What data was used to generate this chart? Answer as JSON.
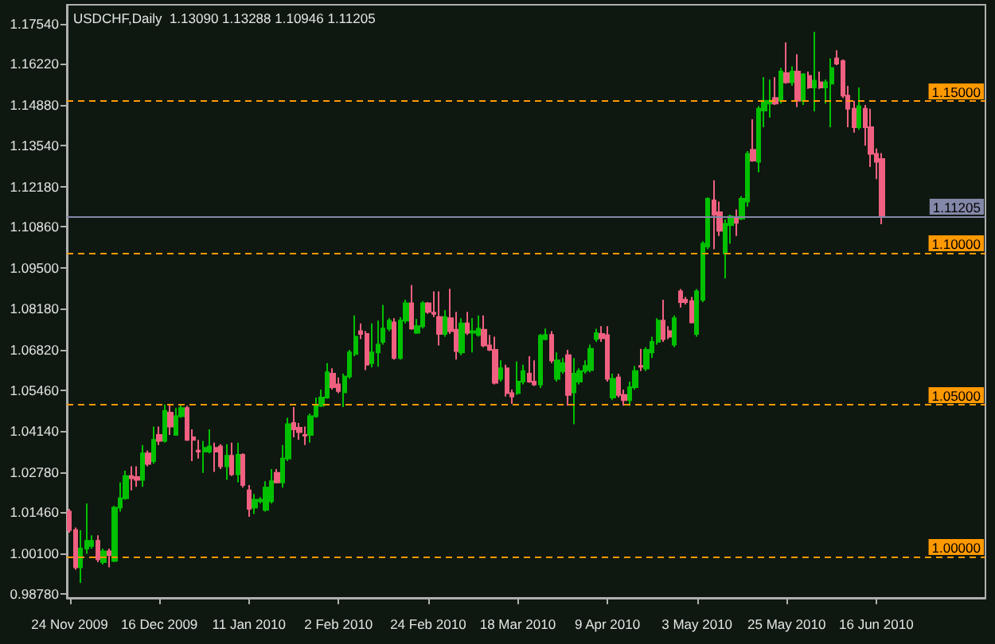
{
  "chart_data": {
    "type": "candlestick",
    "title": "USDCHF,Daily  1.13090 1.13288 1.10946 1.11205",
    "categories": [
      "24 Nov 2009",
      null,
      null,
      null,
      null,
      null,
      null,
      null,
      null,
      null,
      null,
      null,
      null,
      null,
      null,
      null,
      "16 Dec 2009",
      null,
      null,
      null,
      null,
      null,
      null,
      null,
      null,
      null,
      null,
      null,
      null,
      null,
      null,
      null,
      "11 Jan 2010",
      null,
      null,
      null,
      null,
      null,
      null,
      null,
      null,
      null,
      null,
      null,
      null,
      null,
      null,
      null,
      "2 Feb 2010",
      null,
      null,
      null,
      null,
      null,
      null,
      null,
      null,
      null,
      null,
      null,
      null,
      null,
      null,
      null,
      "24 Feb 2010",
      null,
      null,
      null,
      null,
      null,
      null,
      null,
      null,
      null,
      null,
      null,
      null,
      null,
      null,
      null,
      "18 Mar 2010",
      null,
      null,
      null,
      null,
      null,
      null,
      null,
      null,
      null,
      null,
      null,
      null,
      null,
      null,
      null,
      "9 Apr 2010",
      null,
      null,
      null,
      null,
      null,
      null,
      null,
      null,
      null,
      null,
      null,
      null,
      null,
      null,
      null,
      "3 May 2010",
      null,
      null,
      null,
      null,
      null,
      null,
      null,
      null,
      null,
      null,
      null,
      null,
      null,
      null,
      null,
      "25 May 2010",
      null,
      null,
      null,
      null,
      null,
      null,
      null,
      null,
      null,
      null,
      null,
      null,
      null,
      null,
      null,
      "16 Jun 2010",
      null
    ],
    "ohlc": [
      [
        1.0148,
        1.0157,
        1.0079,
        1.0087
      ],
      [
        1.0087,
        1.0096,
        0.9957,
        0.9965
      ],
      [
        0.9965,
        1.0087,
        0.9913,
        1.0026
      ],
      [
        1.0026,
        1.0175,
        1.0009,
        1.0052
      ],
      [
        1.0035,
        1.007,
        1.0026,
        1.0052
      ],
      [
        1.0052,
        1.007,
        0.9982,
        0.9991
      ],
      [
        0.9982,
        1.0026,
        0.9974,
        1.0017
      ],
      [
        1.0017,
        1.0026,
        0.9965,
        1.0005
      ],
      [
        0.9986,
        1.0167,
        0.9982,
        1.0161
      ],
      [
        1.0161,
        1.0244,
        1.0148,
        1.0192
      ],
      [
        1.0192,
        1.0283,
        1.0187,
        1.0265
      ],
      [
        1.0265,
        1.0297,
        1.0218,
        1.0258
      ],
      [
        1.0262,
        1.0297,
        1.023,
        1.0253
      ],
      [
        1.0253,
        1.0367,
        1.023,
        1.034
      ],
      [
        1.034,
        1.0349,
        1.0297,
        1.0305
      ],
      [
        1.0314,
        1.0428,
        1.0305,
        1.0384
      ],
      [
        1.0401,
        1.0428,
        1.0367,
        1.0381
      ],
      [
        1.0381,
        1.0501,
        1.0375,
        1.048
      ],
      [
        1.0474,
        1.0501,
        1.0401,
        1.0428
      ],
      [
        1.0401,
        1.0489,
        1.0398,
        1.0462
      ],
      [
        1.0462,
        1.0501,
        1.0457,
        1.0489
      ],
      [
        1.0489,
        1.0497,
        1.0381,
        1.0384
      ],
      [
        1.0393,
        1.0419,
        1.0314,
        1.0384
      ],
      [
        1.0349,
        1.0384,
        1.0323,
        1.0346
      ],
      [
        1.0346,
        1.0381,
        1.0276,
        1.0358
      ],
      [
        1.0346,
        1.0419,
        1.034,
        1.0363
      ],
      [
        1.0358,
        1.0375,
        1.0279,
        1.0346
      ],
      [
        1.0363,
        1.037,
        1.0288,
        1.0297
      ],
      [
        1.0297,
        1.037,
        1.0253,
        1.0332
      ],
      [
        1.0332,
        1.0375,
        1.0265,
        1.0271
      ],
      [
        1.0271,
        1.0375,
        1.0244,
        1.0335
      ],
      [
        1.0335,
        1.034,
        1.0227,
        1.0236
      ],
      [
        1.0218,
        1.0236,
        1.0131,
        1.0157
      ],
      [
        1.0161,
        1.0206,
        1.014,
        1.0187
      ],
      [
        1.0182,
        1.0196,
        1.0175,
        1.0187
      ],
      [
        1.0154,
        1.0248,
        1.0148,
        1.0227
      ],
      [
        1.0182,
        1.0288,
        1.0175,
        1.0248
      ],
      [
        1.0276,
        1.0288,
        1.0241,
        1.0244
      ],
      [
        1.0244,
        1.0367,
        1.0227,
        1.0323
      ],
      [
        1.0323,
        1.0457,
        1.0314,
        1.0436
      ],
      [
        1.044,
        1.0492,
        1.0393,
        1.0419
      ],
      [
        1.0424,
        1.044,
        1.0384,
        1.041
      ],
      [
        1.0401,
        1.0428,
        1.0367,
        1.0398
      ],
      [
        1.0401,
        1.0471,
        1.0375,
        1.0462
      ],
      [
        1.0462,
        1.0524,
        1.0457,
        1.0497
      ],
      [
        1.0497,
        1.055,
        1.0492,
        1.0524
      ],
      [
        1.0524,
        1.0637,
        1.052,
        1.0607
      ],
      [
        1.0602,
        1.062,
        1.055,
        1.0558
      ],
      [
        1.0567,
        1.059,
        1.0538,
        1.0545
      ],
      [
        1.0541,
        1.0602,
        1.0492,
        1.0593
      ],
      [
        1.0593,
        1.0681,
        1.0585,
        1.0672
      ],
      [
        1.0667,
        1.0794,
        1.066,
        1.0724
      ],
      [
        1.0742,
        1.0768,
        1.0716,
        1.0733
      ],
      [
        1.0733,
        1.0742,
        1.0614,
        1.0632
      ],
      [
        1.0637,
        1.0768,
        1.0623,
        1.0672
      ],
      [
        1.0672,
        1.0777,
        1.0625,
        1.0698
      ],
      [
        1.0707,
        1.0829,
        1.0698,
        1.0751
      ],
      [
        1.0751,
        1.0785,
        1.0742,
        1.0777
      ],
      [
        1.0771,
        1.0785,
        1.0649,
        1.0654
      ],
      [
        1.0654,
        1.0788,
        1.0649,
        1.0777
      ],
      [
        1.0777,
        1.0846,
        1.0768,
        1.0834
      ],
      [
        1.0834,
        1.0894,
        1.0747,
        1.0751
      ],
      [
        1.0737,
        1.0782,
        1.0733,
        1.0759
      ],
      [
        1.0759,
        1.0841,
        1.0751,
        1.0834
      ],
      [
        1.0834,
        1.0838,
        1.0799,
        1.0806
      ],
      [
        1.0803,
        1.0873,
        1.0789,
        1.0799
      ],
      [
        1.0789,
        1.0873,
        1.0695,
        1.0733
      ],
      [
        1.0733,
        1.0812,
        1.0724,
        1.0789
      ],
      [
        1.0785,
        1.0882,
        1.0733,
        1.0742
      ],
      [
        1.0747,
        1.0806,
        1.0649,
        1.0677
      ],
      [
        1.0672,
        1.0785,
        1.0663,
        1.0768
      ],
      [
        1.0768,
        1.0806,
        1.073,
        1.0737
      ],
      [
        1.0737,
        1.0785,
        1.0672,
        1.0742
      ],
      [
        1.073,
        1.0794,
        1.0724,
        1.0751
      ],
      [
        1.0747,
        1.0794,
        1.0689,
        1.0695
      ],
      [
        1.0695,
        1.073,
        1.0677,
        1.0681
      ],
      [
        1.0681,
        1.0724,
        1.0567,
        1.0572
      ],
      [
        1.0585,
        1.0646,
        1.0576,
        1.062
      ],
      [
        1.062,
        1.0632,
        1.0527,
        1.0538
      ],
      [
        1.0538,
        1.055,
        1.0503,
        1.0527
      ],
      [
        1.0538,
        1.0642,
        1.0532,
        1.0576
      ],
      [
        1.0576,
        1.0632,
        1.0567,
        1.0611
      ],
      [
        1.0602,
        1.066,
        1.0572,
        1.0576
      ],
      [
        1.0576,
        1.0646,
        1.0562,
        1.0567
      ],
      [
        1.0567,
        1.0733,
        1.0555,
        1.0727
      ],
      [
        1.0716,
        1.0751,
        1.0712,
        1.073
      ],
      [
        1.073,
        1.0742,
        1.0637,
        1.0646
      ],
      [
        1.0585,
        1.0672,
        1.0576,
        1.0646
      ],
      [
        1.0611,
        1.0654,
        1.0602,
        1.0637
      ],
      [
        1.0663,
        1.0681,
        1.0497,
        1.0532
      ],
      [
        1.0541,
        1.0654,
        1.0436,
        1.0602
      ],
      [
        1.0576,
        1.062,
        1.0567,
        1.0611
      ],
      [
        1.0611,
        1.0646,
        1.0602,
        1.0628
      ],
      [
        1.0614,
        1.0698,
        1.0607,
        1.0684
      ],
      [
        1.0716,
        1.075,
        1.0707,
        1.0736
      ],
      [
        1.0733,
        1.0759,
        1.0707,
        1.0719
      ],
      [
        1.0729,
        1.0759,
        1.0576,
        1.0585
      ],
      [
        1.0524,
        1.0602,
        1.0515,
        1.0585
      ],
      [
        1.059,
        1.0602,
        1.0524,
        1.0532
      ],
      [
        1.0532,
        1.055,
        1.0497,
        1.0515
      ],
      [
        1.0515,
        1.0576,
        1.0497,
        1.0558
      ],
      [
        1.0558,
        1.0628,
        1.055,
        1.0611
      ],
      [
        1.0628,
        1.0684,
        1.0611,
        1.0625
      ],
      [
        1.0619,
        1.0689,
        1.0611,
        1.0681
      ],
      [
        1.0672,
        1.0724,
        1.0654,
        1.0707
      ],
      [
        1.0707,
        1.0785,
        1.0698,
        1.0777
      ],
      [
        1.0777,
        1.0846,
        1.0707,
        1.0716
      ],
      [
        1.0742,
        1.0759,
        1.0716,
        1.0724
      ],
      [
        1.0698,
        1.0794,
        1.0689,
        1.0785
      ],
      [
        1.0873,
        1.0881,
        1.082,
        1.0838
      ],
      [
        1.0846,
        1.0855,
        1.083,
        1.0838
      ],
      [
        1.0841,
        1.0855,
        1.0768,
        1.0771
      ],
      [
        1.0733,
        1.0881,
        1.0724,
        1.0873
      ],
      [
        1.0846,
        1.1038,
        1.0838,
        1.103
      ],
      [
        1.1021,
        1.1183,
        1.1012,
        1.1178
      ],
      [
        1.1173,
        1.1239,
        1.1012,
        1.1126
      ],
      [
        1.1134,
        1.1169,
        1.1056,
        1.1073
      ],
      [
        1.0998,
        1.111,
        1.0916,
        1.1096
      ],
      [
        1.1091,
        1.1126,
        1.103,
        1.112
      ],
      [
        1.1113,
        1.1143,
        1.1056,
        1.1099
      ],
      [
        1.1113,
        1.1187,
        1.1108,
        1.1178
      ],
      [
        1.1169,
        1.1335,
        1.1152,
        1.1326
      ],
      [
        1.1339,
        1.144,
        1.13,
        1.1304
      ],
      [
        1.13,
        1.1483,
        1.1265,
        1.1475
      ],
      [
        1.1469,
        1.1579,
        1.1414,
        1.1501
      ],
      [
        1.1492,
        1.1571,
        1.1445,
        1.1501
      ],
      [
        1.151,
        1.1579,
        1.1487,
        1.1492
      ],
      [
        1.1501,
        1.1609,
        1.1492,
        1.1597
      ],
      [
        1.1592,
        1.1693,
        1.1557,
        1.1562
      ],
      [
        1.1562,
        1.1614,
        1.155,
        1.1597
      ],
      [
        1.1597,
        1.1654,
        1.148,
        1.1501
      ],
      [
        1.1501,
        1.1592,
        1.1487,
        1.1588
      ],
      [
        1.1583,
        1.1597,
        1.154,
        1.1545
      ],
      [
        1.1545,
        1.1728,
        1.1466,
        1.1567
      ],
      [
        1.1562,
        1.1597,
        1.154,
        1.1545
      ],
      [
        1.1545,
        1.1571,
        1.1492,
        1.1562
      ],
      [
        1.1557,
        1.164,
        1.1414,
        1.1609
      ],
      [
        1.164,
        1.1667,
        1.1618,
        1.1623
      ],
      [
        1.1632,
        1.1637,
        1.151,
        1.1518
      ],
      [
        1.1518,
        1.155,
        1.1414,
        1.1475
      ],
      [
        1.1475,
        1.1501,
        1.1396,
        1.1414
      ],
      [
        1.1414,
        1.1545,
        1.1405,
        1.1483
      ],
      [
        1.1475,
        1.1487,
        1.1353,
        1.1414
      ],
      [
        1.1414,
        1.1475,
        1.1283,
        1.1326
      ],
      [
        1.1326,
        1.1344,
        1.1243,
        1.13
      ],
      [
        1.1309,
        1.13288,
        1.10946,
        1.11205
      ]
    ],
    "colors": [
      "#f06080",
      "#f06080",
      "#00c000",
      "#00c000",
      "#00c000",
      "#f06080",
      "#00c000",
      "#f06080",
      "#00c000",
      "#00c000",
      "#00c000",
      "#f06080",
      "#f06080",
      "#00c000",
      "#f06080",
      "#00c000",
      "#f06080",
      "#00c000",
      "#f06080",
      "#00c000",
      "#00c000",
      "#f06080",
      "#f06080",
      "#f06080",
      "#00c000",
      "#00c000",
      "#f06080",
      "#f06080",
      "#00c000",
      "#f06080",
      "#00c000",
      "#f06080",
      "#f06080",
      "#00c000",
      "#00c000",
      "#00c000",
      "#00c000",
      "#f06080",
      "#00c000",
      "#00c000",
      "#f06080",
      "#f06080",
      "#f06080",
      "#00c000",
      "#00c000",
      "#00c000",
      "#00c000",
      "#f06080",
      "#f06080",
      "#00c000",
      "#00c000",
      "#00c000",
      "#f06080",
      "#f06080",
      "#00c000",
      "#00c000",
      "#00c000",
      "#00c000",
      "#f06080",
      "#00c000",
      "#00c000",
      "#f06080",
      "#00c000",
      "#00c000",
      "#f06080",
      "#f06080",
      "#f06080",
      "#00c000",
      "#f06080",
      "#f06080",
      "#00c000",
      "#f06080",
      "#00c000",
      "#00c000",
      "#f06080",
      "#f06080",
      "#f06080",
      "#00c000",
      "#f06080",
      "#f06080",
      "#00c000",
      "#00c000",
      "#f06080",
      "#f06080",
      "#00c000",
      "#00c000",
      "#f06080",
      "#00c000",
      "#00c000",
      "#f06080",
      "#00c000",
      "#00c000",
      "#00c000",
      "#00c000",
      "#00c000",
      "#f06080",
      "#f06080",
      "#00c000",
      "#f06080",
      "#f06080",
      "#00c000",
      "#00c000",
      "#f06080",
      "#00c000",
      "#00c000",
      "#00c000",
      "#f06080",
      "#f06080",
      "#00c000",
      "#f06080",
      "#f06080",
      "#f06080",
      "#00c000",
      "#00c000",
      "#00c000",
      "#f06080",
      "#f06080",
      "#00c000",
      "#00c000",
      "#f06080",
      "#00c000",
      "#00c000",
      "#f06080",
      "#00c000",
      "#00c000",
      "#00c000",
      "#f06080",
      "#00c000",
      "#f06080",
      "#00c000",
      "#f06080",
      "#00c000",
      "#f06080",
      "#00c000",
      "#f06080",
      "#00c000",
      "#00c000",
      "#f06080",
      "#f06080",
      "#f06080",
      "#f06080",
      "#00c000",
      "#f06080",
      "#f06080",
      "#f06080",
      "#f06080"
    ],
    "ylim": [
      0.9864,
      1.1817
    ],
    "yticks": [
      {
        "value": 0.9878,
        "label": "0.98780"
      },
      {
        "value": 1.001,
        "label": "1.00100"
      },
      {
        "value": 1.0146,
        "label": "1.01460"
      },
      {
        "value": 1.0278,
        "label": "1.02780"
      },
      {
        "value": 1.0414,
        "label": "1.04140"
      },
      {
        "value": 1.0546,
        "label": "1.05460"
      },
      {
        "value": 1.0682,
        "label": "1.06820"
      },
      {
        "value": 1.0818,
        "label": "1.08180"
      },
      {
        "value": 1.095,
        "label": "1.09500"
      },
      {
        "value": 1.1086,
        "label": "1.10860"
      },
      {
        "value": 1.1218,
        "label": "1.12180"
      },
      {
        "value": 1.1354,
        "label": "1.13540"
      },
      {
        "value": 1.1488,
        "label": "1.14880"
      },
      {
        "value": 1.1622,
        "label": "1.16220"
      },
      {
        "value": 1.1754,
        "label": "1.17540"
      }
    ],
    "ref_lines": [
      {
        "axis": "y",
        "value": 1.15,
        "label": "1.15000",
        "color": "#ff9900",
        "line_style": "dashed"
      },
      {
        "axis": "y",
        "value": 1.1,
        "label": "1.10000",
        "color": "#ff9900",
        "line_style": "dashed"
      },
      {
        "axis": "y",
        "value": 1.05,
        "label": "1.05000",
        "color": "#ff9900",
        "line_style": "dashed"
      },
      {
        "axis": "y",
        "value": 1.0,
        "label": "1.00000",
        "color": "#ff9900",
        "line_style": "dashed"
      },
      {
        "axis": "y",
        "value": 1.11205,
        "label": "1.11205",
        "color": "#8488a8",
        "line_style": "solid"
      }
    ],
    "grid": false
  }
}
